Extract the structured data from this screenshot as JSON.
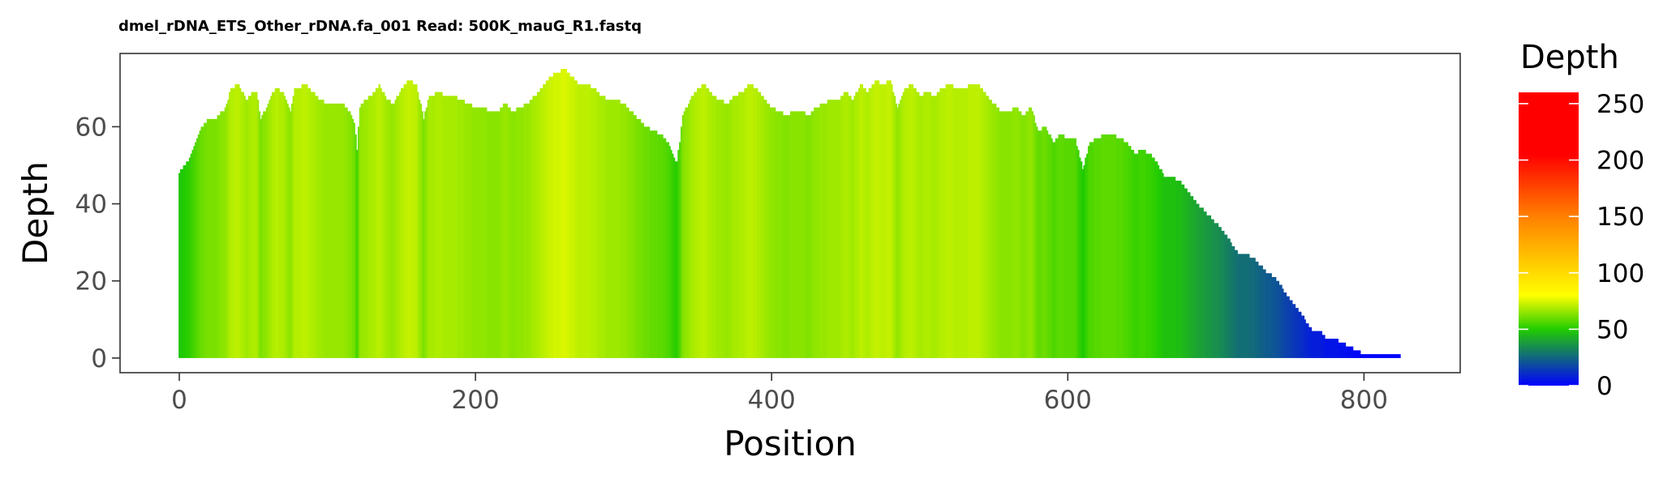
{
  "chart_data": {
    "type": "bar",
    "title": "dmel_rDNA_ETS_Other_rDNA.fa_001 Read: 500K_mauG_R1.fastq",
    "xlabel": "Position",
    "ylabel": "Depth",
    "xlim": [
      -40,
      865
    ],
    "ylim": [
      -3.8,
      79
    ],
    "x_ticks": [
      0,
      200,
      400,
      600,
      800
    ],
    "y_ticks": [
      0,
      20,
      40,
      60
    ],
    "bar_width": 1,
    "legend": {
      "title": "Depth",
      "placement": "right",
      "type": "colorbar",
      "range": [
        0,
        260
      ],
      "ticks": [
        0,
        50,
        100,
        150,
        200,
        250
      ],
      "colors": [
        {
          "value": 0,
          "color": "#0000ff"
        },
        {
          "value": 50,
          "color": "#22cc00"
        },
        {
          "value": 80,
          "color": "#ffff00"
        },
        {
          "value": 150,
          "color": "#ff8000"
        },
        {
          "value": 205,
          "color": "#ff0000"
        },
        {
          "value": 260,
          "color": "#ff0000"
        }
      ]
    },
    "grid": false,
    "depth_profile": {
      "x": [
        0,
        2,
        4,
        6,
        8,
        10,
        12,
        14,
        16,
        18,
        20,
        25,
        28,
        30,
        32,
        35,
        40,
        45,
        50,
        52,
        55,
        60,
        62,
        65,
        70,
        75,
        78,
        80,
        85,
        90,
        95,
        100,
        110,
        115,
        118,
        120,
        122,
        125,
        130,
        135,
        140,
        145,
        150,
        155,
        160,
        165,
        168,
        170,
        175,
        180,
        185,
        190,
        195,
        200,
        205,
        210,
        215,
        220,
        225,
        230,
        235,
        240,
        245,
        250,
        255,
        260,
        265,
        270,
        275,
        280,
        285,
        290,
        295,
        300,
        305,
        310,
        315,
        320,
        325,
        330,
        335,
        336,
        338,
        340,
        345,
        350,
        355,
        360,
        365,
        370,
        375,
        380,
        385,
        390,
        395,
        400,
        405,
        410,
        415,
        420,
        425,
        430,
        435,
        440,
        445,
        450,
        455,
        460,
        465,
        470,
        475,
        480,
        485,
        490,
        495,
        500,
        505,
        510,
        515,
        520,
        525,
        530,
        535,
        540,
        545,
        550,
        555,
        560,
        565,
        570,
        575,
        580,
        585,
        590,
        595,
        600,
        605,
        610,
        615,
        620,
        625,
        630,
        635,
        640,
        645,
        650,
        655,
        660,
        665,
        670,
        675,
        680,
        685,
        690,
        695,
        700,
        705,
        710,
        715,
        720,
        725,
        730,
        735,
        740,
        745,
        750,
        755,
        760,
        765,
        770,
        775,
        780,
        785,
        790,
        795,
        800,
        805,
        810,
        815,
        820,
        824
      ],
      "y": [
        48,
        49,
        50,
        51,
        53,
        55,
        57,
        59,
        60,
        61,
        62,
        62,
        64,
        64,
        66,
        70,
        71,
        67,
        69,
        69,
        62,
        66,
        68,
        70,
        69,
        64,
        70,
        70,
        71,
        69,
        67,
        66,
        66,
        64,
        61,
        54,
        65,
        67,
        68,
        71,
        67,
        66,
        70,
        72,
        71,
        62,
        67,
        68,
        69,
        68,
        68,
        67,
        66,
        65,
        65,
        64,
        64,
        66,
        64,
        65,
        66,
        68,
        70,
        73,
        74,
        75,
        73,
        71,
        71,
        70,
        68,
        67,
        67,
        66,
        64,
        62,
        60,
        59,
        58,
        56,
        51,
        51,
        56,
        63,
        67,
        70,
        71,
        68,
        67,
        66,
        68,
        69,
        71,
        70,
        67,
        65,
        64,
        63,
        64,
        64,
        63,
        65,
        66,
        67,
        67,
        69,
        67,
        71,
        69,
        72,
        71,
        72,
        65,
        70,
        71,
        68,
        69,
        68,
        70,
        71,
        70,
        70,
        71,
        71,
        68,
        66,
        64,
        64,
        65,
        63,
        65,
        59,
        60,
        56,
        58,
        57,
        57,
        49,
        56,
        57,
        58,
        58,
        57,
        56,
        53,
        54,
        53,
        51,
        47,
        47,
        46,
        44,
        41,
        39,
        37,
        35,
        33,
        30,
        27,
        27,
        26,
        24,
        22,
        21,
        18,
        15,
        13,
        10,
        7,
        7,
        5,
        5,
        4,
        3,
        2,
        1,
        1,
        1,
        1,
        1,
        1
      ]
    }
  }
}
